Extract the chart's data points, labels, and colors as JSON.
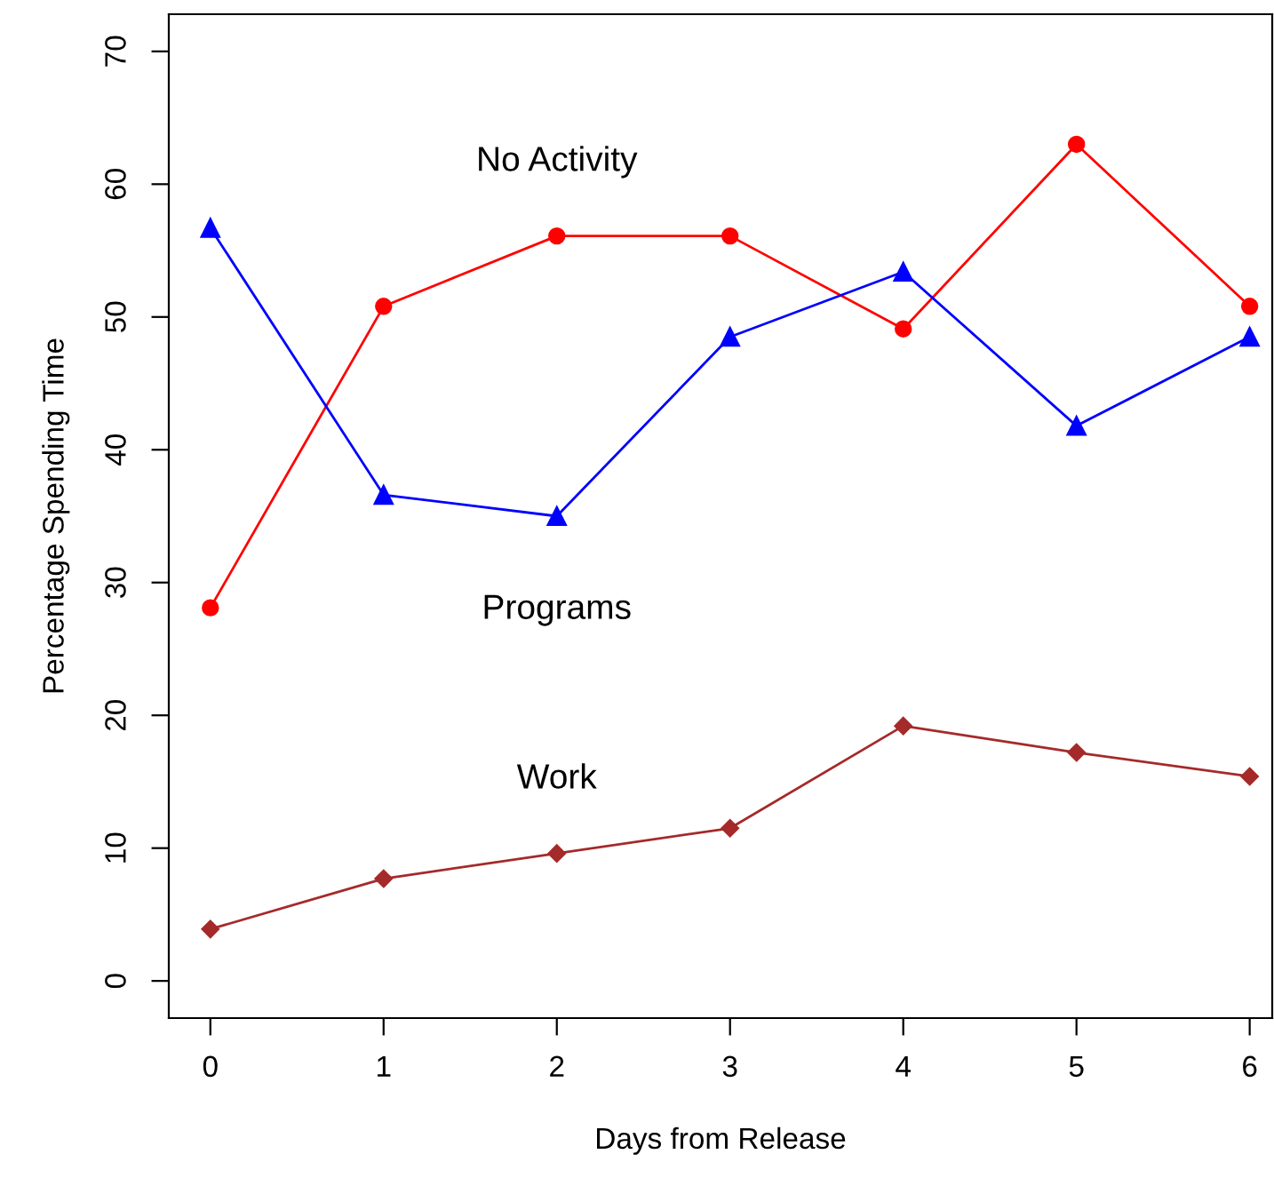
{
  "chart_data": {
    "type": "line",
    "xlabel": "Days from Release",
    "ylabel": "Percentage Spending Time",
    "x": [
      0,
      1,
      2,
      3,
      4,
      5,
      6
    ],
    "series": [
      {
        "name": "No Activity",
        "color": "#ff0000",
        "marker": "circle",
        "values": [
          28.1,
          50.8,
          56.1,
          56.1,
          49.1,
          63.0,
          50.8
        ]
      },
      {
        "name": "Programs",
        "color": "#0000ff",
        "marker": "triangle",
        "values": [
          56.7,
          36.6,
          35.0,
          48.5,
          53.4,
          41.8,
          48.5
        ]
      },
      {
        "name": "Work",
        "color": "#a52a2a",
        "marker": "diamond",
        "values": [
          3.9,
          7.7,
          9.6,
          11.5,
          19.2,
          17.2,
          15.4
        ]
      }
    ],
    "xlim": [
      -0.24,
      6.13
    ],
    "ylim": [
      -2.8,
      72.8
    ],
    "xticks": [
      0,
      1,
      2,
      3,
      4,
      5,
      6
    ],
    "yticks": [
      0,
      10,
      20,
      30,
      40,
      50,
      60,
      70
    ],
    "grid": false,
    "legend": false,
    "line_style": "solid"
  }
}
